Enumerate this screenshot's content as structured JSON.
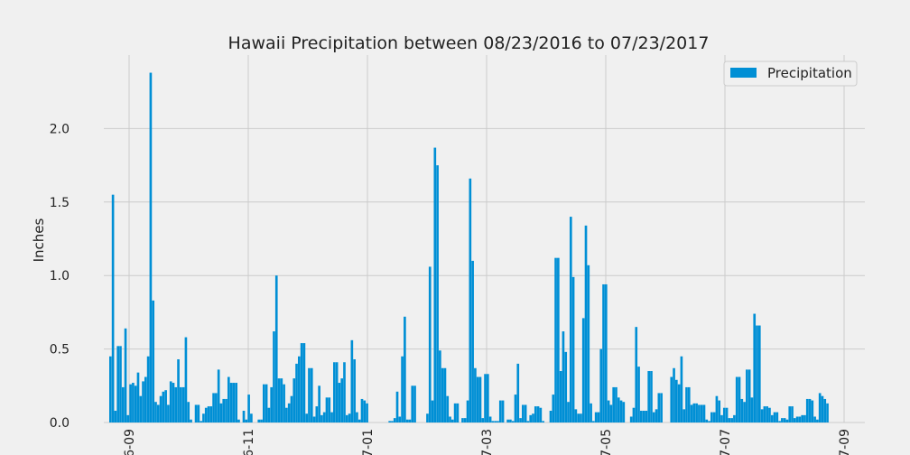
{
  "chart_data": {
    "type": "bar",
    "title": "Hawaii Precipitation between 08/23/2016 to 07/23/2017",
    "ylabel": "Inches",
    "xlabel": "",
    "ylim": [
      0,
      2.5
    ],
    "yticks": [
      0.0,
      0.5,
      1.0,
      1.5,
      2.0
    ],
    "ytick_labels": [
      "0.0",
      "0.5",
      "1.0",
      "1.5",
      "2.0"
    ],
    "xtick_labels": [
      "6-09",
      "6-11",
      "7-01",
      "7-03",
      "7-05",
      "7-07",
      "7-09"
    ],
    "grid": true,
    "legend_position": "top-right",
    "bar_color": "#008fd5",
    "series": [
      {
        "name": "Precipitation",
        "values": [
          0.45,
          1.55,
          0.08,
          0.52,
          0.52,
          0.24,
          0.64,
          0.05,
          0.26,
          0.27,
          0.25,
          0.34,
          0.18,
          0.28,
          0.31,
          0.45,
          2.38,
          0.83,
          0.14,
          0.12,
          0.18,
          0.21,
          0.22,
          0.12,
          0.28,
          0.27,
          0.24,
          0.43,
          0.24,
          0.24,
          0.58,
          0.14,
          0.02,
          0.0,
          0.12,
          0.12,
          0.01,
          0.06,
          0.1,
          0.11,
          0.11,
          0.2,
          0.2,
          0.36,
          0.13,
          0.16,
          0.16,
          0.31,
          0.27,
          0.27,
          0.27,
          0.02,
          0.0,
          0.08,
          0.02,
          0.19,
          0.06,
          0.0,
          0.0,
          0.02,
          0.02,
          0.26,
          0.26,
          0.1,
          0.24,
          0.62,
          1.0,
          0.3,
          0.3,
          0.26,
          0.1,
          0.13,
          0.18,
          0.3,
          0.4,
          0.45,
          0.54,
          0.54,
          0.06,
          0.37,
          0.37,
          0.04,
          0.11,
          0.25,
          0.05,
          0.07,
          0.17,
          0.17,
          0.07,
          0.41,
          0.41,
          0.27,
          0.3,
          0.41,
          0.05,
          0.06,
          0.56,
          0.43,
          0.07,
          0.02,
          0.16,
          0.15,
          0.13,
          0.0,
          0.0,
          0.0,
          0.0,
          0.0,
          0.0,
          0.0,
          0.0,
          0.01,
          0.01,
          0.03,
          0.21,
          0.04,
          0.45,
          0.72,
          0.02,
          0.02,
          0.25,
          0.25,
          0.0,
          0.0,
          0.0,
          0.0,
          0.06,
          1.06,
          0.15,
          1.87,
          1.75,
          0.49,
          0.37,
          0.37,
          0.18,
          0.04,
          0.02,
          0.13,
          0.13,
          0.0,
          0.03,
          0.03,
          0.15,
          1.66,
          1.1,
          0.37,
          0.31,
          0.31,
          0.03,
          0.33,
          0.33,
          0.04,
          0.01,
          0.01,
          0.01,
          0.15,
          0.15,
          0.0,
          0.02,
          0.02,
          0.01,
          0.19,
          0.4,
          0.03,
          0.12,
          0.12,
          0.01,
          0.05,
          0.06,
          0.11,
          0.11,
          0.1,
          0.01,
          0.0,
          0.0,
          0.08,
          0.19,
          1.12,
          1.12,
          0.35,
          0.62,
          0.48,
          0.14,
          1.4,
          0.99,
          0.09,
          0.06,
          0.06,
          0.71,
          1.34,
          1.07,
          0.13,
          0.01,
          0.07,
          0.07,
          0.5,
          0.94,
          0.94,
          0.15,
          0.12,
          0.24,
          0.24,
          0.17,
          0.15,
          0.14,
          0.0,
          0.0,
          0.04,
          0.1,
          0.65,
          0.38,
          0.08,
          0.08,
          0.08,
          0.35,
          0.35,
          0.07,
          0.09,
          0.2,
          0.2,
          0.0,
          0.0,
          0.0,
          0.31,
          0.37,
          0.29,
          0.26,
          0.45,
          0.09,
          0.24,
          0.24,
          0.12,
          0.13,
          0.13,
          0.12,
          0.12,
          0.12,
          0.02,
          0.01,
          0.07,
          0.07,
          0.18,
          0.15,
          0.05,
          0.1,
          0.1,
          0.03,
          0.03,
          0.05,
          0.31,
          0.31,
          0.16,
          0.14,
          0.36,
          0.36,
          0.17,
          0.74,
          0.66,
          0.66,
          0.09,
          0.11,
          0.11,
          0.1,
          0.05,
          0.07,
          0.07,
          0.01,
          0.03,
          0.03,
          0.02,
          0.11,
          0.11,
          0.03,
          0.04,
          0.04,
          0.05,
          0.05,
          0.16,
          0.16,
          0.15,
          0.04,
          0.02,
          0.2,
          0.18,
          0.16,
          0.13
        ]
      }
    ]
  }
}
